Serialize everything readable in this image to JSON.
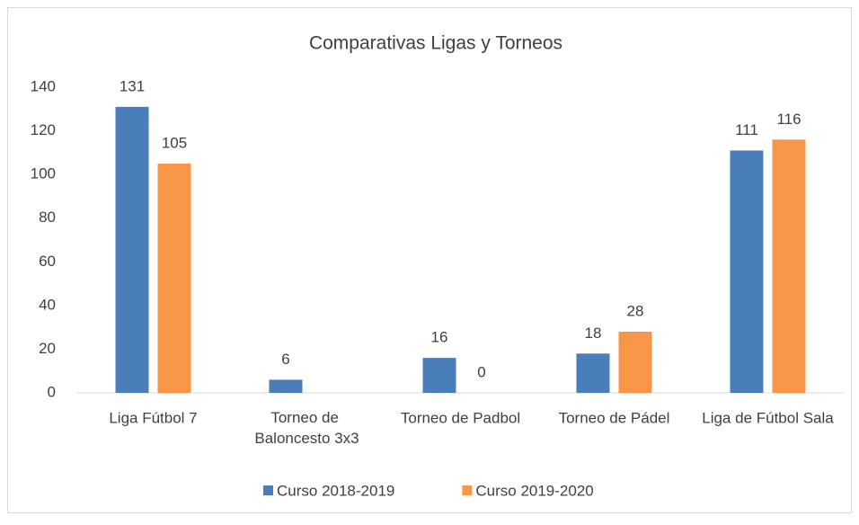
{
  "chart_data": {
    "type": "bar",
    "title": "Comparativas Ligas y Torneos",
    "categories": [
      "Liga Fútbol 7",
      "Torneo de Baloncesto 3x3",
      "Torneo de Padbol",
      "Torneo de Pádel",
      "Liga de Fútbol Sala"
    ],
    "series": [
      {
        "name": "Curso 2018-2019",
        "color": "#4a7ebb",
        "values": [
          131,
          6,
          16,
          18,
          111
        ]
      },
      {
        "name": "Curso 2019-2020",
        "color": "#f79646",
        "values": [
          105,
          null,
          0,
          28,
          116
        ]
      }
    ],
    "ylim": [
      0,
      140
    ],
    "yticks": [
      0,
      20,
      40,
      60,
      80,
      100,
      120,
      140
    ],
    "grid": false,
    "legend": "bottom"
  }
}
